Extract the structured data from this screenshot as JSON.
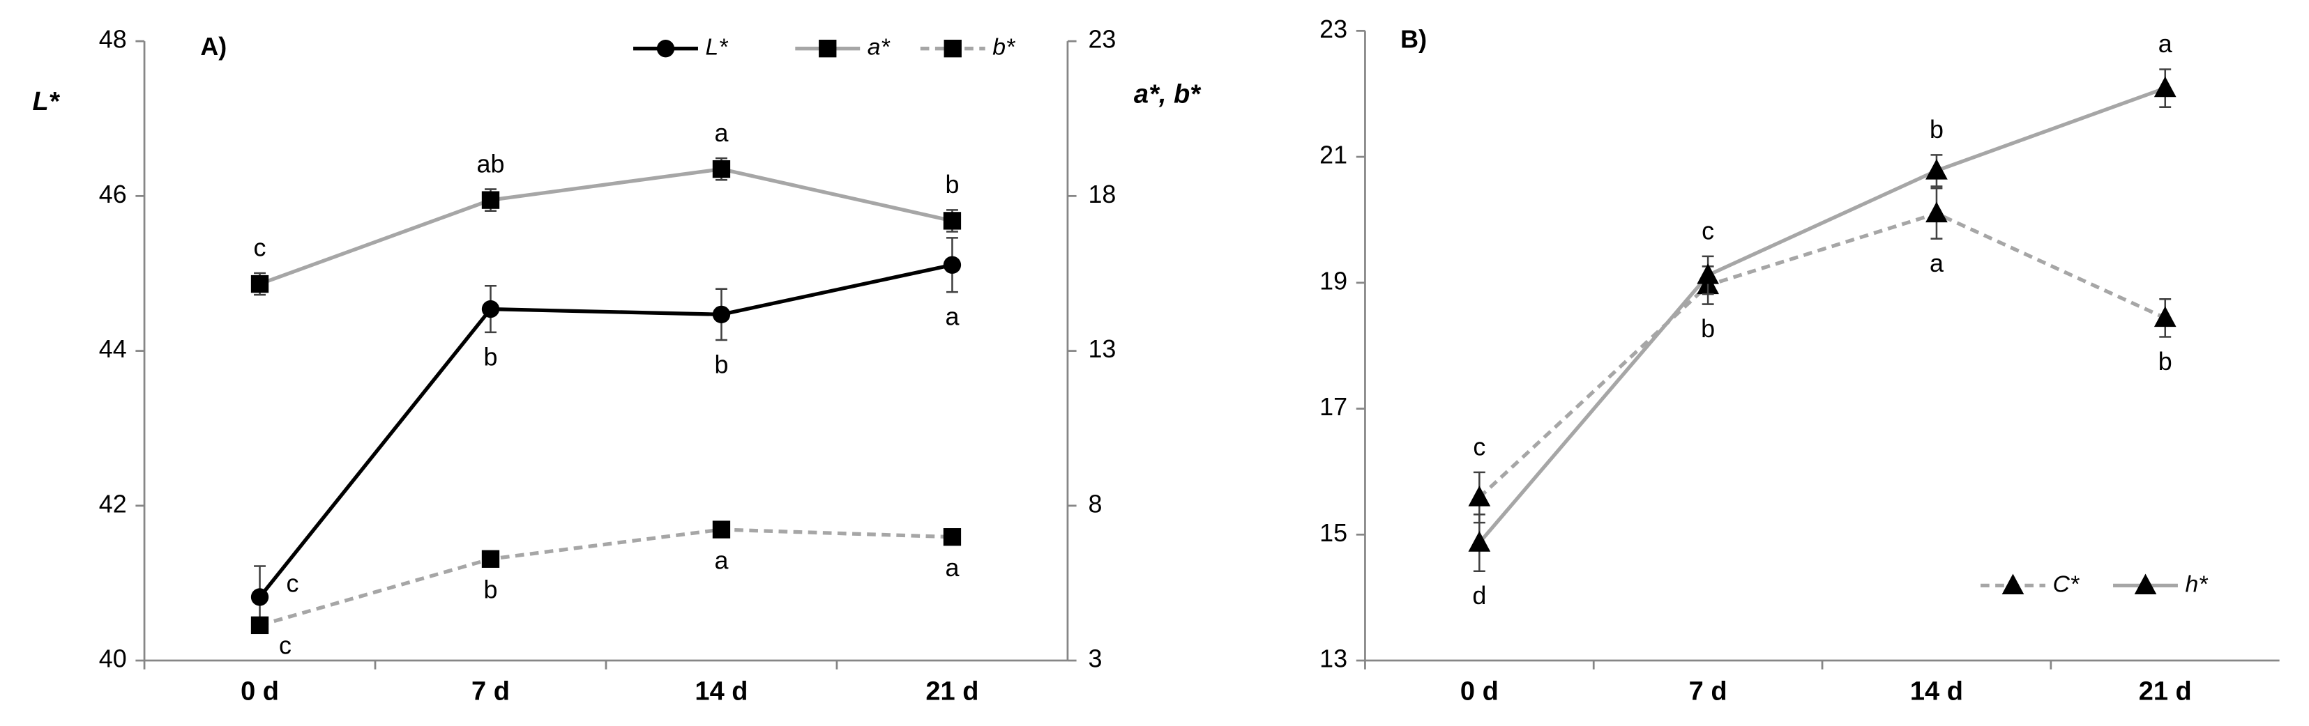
{
  "chart_data": [
    {
      "type": "line",
      "title": "A)",
      "y_label": "L*",
      "y2_label": "a*, b*",
      "categories": [
        "0 d",
        "7 d",
        "14 d",
        "21 d"
      ],
      "ylim": [
        40,
        48
      ],
      "yticks": [
        40,
        42,
        44,
        46,
        48
      ],
      "y2lim": [
        3,
        23
      ],
      "y2ticks": [
        3,
        8,
        13,
        18,
        23
      ],
      "legend": "top",
      "series": [
        {
          "name": "L*",
          "color": "#000000",
          "dash": false,
          "marker": "circle",
          "axis": "y",
          "values": [
            40.82,
            44.54,
            44.47,
            45.11
          ],
          "errors": [
            0.4,
            0.3,
            0.33,
            0.35
          ],
          "letters": [
            "c",
            "b",
            "b",
            "a"
          ]
        },
        {
          "name": "a*",
          "color": "#a6a6a6",
          "dash": false,
          "marker": "square",
          "axis": "y2",
          "values": [
            15.16,
            17.87,
            18.87,
            17.2
          ],
          "errors": [
            0.35,
            0.35,
            0.35,
            0.35
          ],
          "letters": [
            "c",
            "ab",
            "a",
            "b"
          ]
        },
        {
          "name": "b*",
          "color": "#a6a6a6",
          "dash": true,
          "marker": "square",
          "axis": "y2",
          "values": [
            4.14,
            6.28,
            7.23,
            6.99
          ],
          "errors": [
            0.2,
            0.2,
            0.2,
            0.2
          ],
          "letters": [
            "c",
            "b",
            "a",
            "a"
          ]
        }
      ]
    },
    {
      "type": "line",
      "title": "B)",
      "categories": [
        "0 d",
        "7 d",
        "14 d",
        "21 d"
      ],
      "ylim": [
        13,
        23
      ],
      "yticks": [
        13,
        15,
        17,
        19,
        21,
        23
      ],
      "legend": "lower right",
      "series": [
        {
          "name": "C*",
          "color": "#a6a6a6",
          "dash": true,
          "marker": "triangle",
          "axis": "y",
          "values": [
            15.59,
            18.96,
            20.1,
            18.44
          ],
          "errors": [
            0.4,
            0.3,
            0.4,
            0.3
          ],
          "letters": [
            "c",
            "b",
            "a",
            "b"
          ]
        },
        {
          "name": "h*",
          "color": "#a6a6a6",
          "dash": false,
          "marker": "triangle",
          "axis": "y",
          "values": [
            14.87,
            19.12,
            20.78,
            22.09
          ],
          "errors": [
            0.45,
            0.3,
            0.25,
            0.3
          ],
          "letters": [
            "d",
            "c",
            "b",
            "a"
          ]
        }
      ]
    }
  ]
}
